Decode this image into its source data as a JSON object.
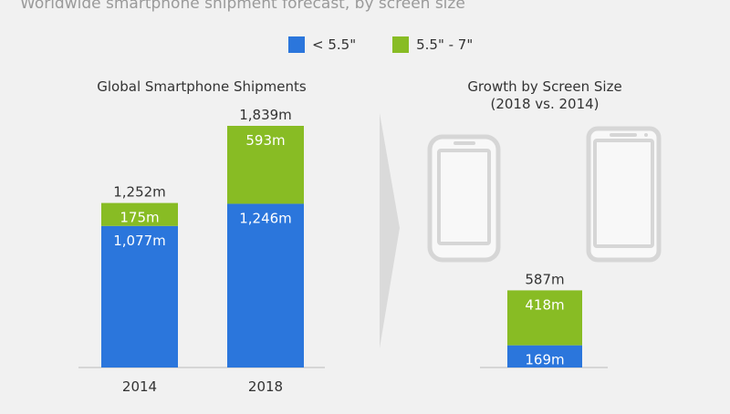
{
  "subtitle": "Worldwide smartphone shipment forecast, by screen size",
  "colors": {
    "small": "#2b76dc",
    "large": "#88bc24",
    "phone_outline": "#d6d6d6",
    "arrow": "#dadada",
    "axis": "#bbbbbb"
  },
  "icons": [
    "smartphone-small-icon",
    "smartphone-large-icon",
    "chevron-right-icon"
  ],
  "chart_data": [
    {
      "type": "bar",
      "stacked": true,
      "title": "Global Smartphone Shipments",
      "categories": [
        "2014",
        "2018"
      ],
      "series": [
        {
          "name": "< 5.5\"",
          "values": [
            1077,
            1246
          ],
          "labels": [
            "1,077m",
            "1,246m"
          ]
        },
        {
          "name": "5.5\" - 7\"",
          "values": [
            175,
            593
          ],
          "labels": [
            "175m",
            "593m"
          ]
        }
      ],
      "totals": [
        1252,
        1839
      ],
      "total_labels": [
        "1,252m",
        "1,839m"
      ],
      "ylim": [
        0,
        2000
      ]
    },
    {
      "type": "bar",
      "stacked": true,
      "title": "Growth by Screen Size",
      "subtitle": "(2018 vs. 2014)",
      "categories": [
        ""
      ],
      "series": [
        {
          "name": "< 5.5\"",
          "values": [
            169
          ],
          "labels": [
            "169m"
          ]
        },
        {
          "name": "5.5\" - 7\"",
          "values": [
            418
          ],
          "labels": [
            "418m"
          ]
        }
      ],
      "totals": [
        587
      ],
      "total_labels": [
        "587m"
      ],
      "ylim": [
        0,
        2000
      ]
    }
  ]
}
